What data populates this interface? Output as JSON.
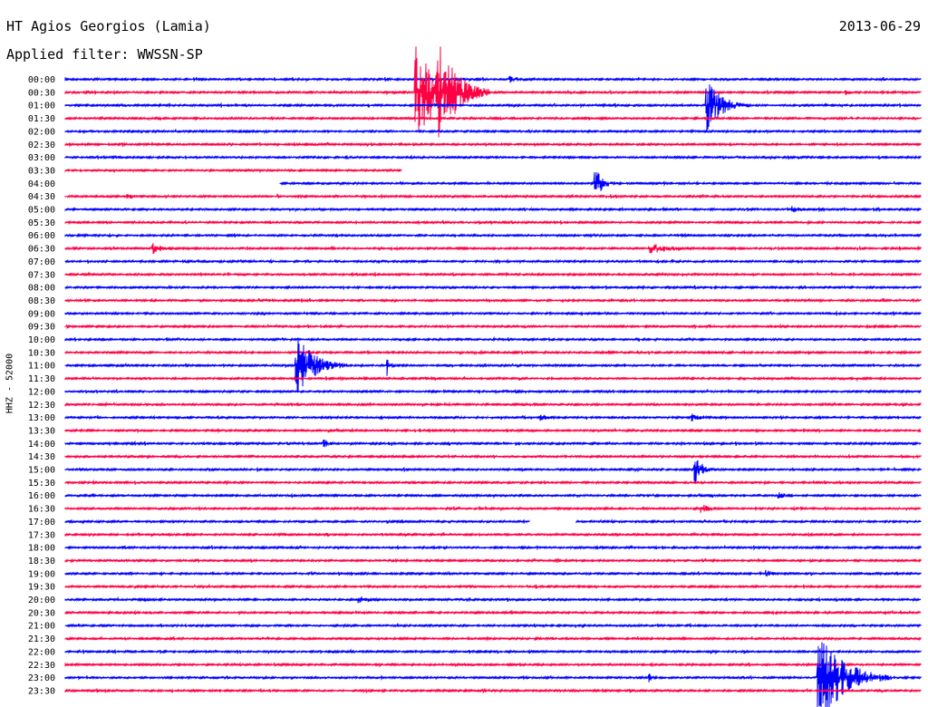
{
  "header": {
    "station": "HT Agios Georgios (Lamia)",
    "filter": "Applied filter: WWSSN-SP",
    "date": "2013-06-29"
  },
  "chart_data": {
    "type": "line",
    "title": "HT Agios Georgios (Lamia)",
    "subtitle": "Applied filter: WWSSN-SP",
    "date": "2013-06-29",
    "ylabel": "HHZ - 52000",
    "row_labels": [
      "00:00",
      "00:30",
      "01:00",
      "01:30",
      "02:00",
      "02:30",
      "03:00",
      "03:30",
      "04:00",
      "04:30",
      "05:00",
      "05:30",
      "06:00",
      "06:30",
      "07:00",
      "07:30",
      "08:00",
      "08:30",
      "09:00",
      "09:30",
      "10:00",
      "10:30",
      "11:00",
      "11:30",
      "12:00",
      "12:30",
      "13:00",
      "13:30",
      "14:00",
      "14:30",
      "15:00",
      "15:30",
      "16:00",
      "16:30",
      "17:00",
      "17:30",
      "18:00",
      "18:30",
      "19:00",
      "19:30",
      "20:00",
      "20:30",
      "21:00",
      "21:30",
      "22:00",
      "22:30",
      "23:00",
      "23:30"
    ],
    "x_minutes_per_row": 30,
    "colors": {
      "even": "#0000ff",
      "odd": "#ff0044"
    },
    "events": [
      {
        "row": 0,
        "minute": 15.6,
        "amp": 4,
        "dur": 1.2
      },
      {
        "row": 1,
        "minute": 12.3,
        "amp": 55,
        "dur": 2.5
      },
      {
        "row": 1,
        "minute": 13.1,
        "amp": 60,
        "dur": 1.8
      },
      {
        "row": 1,
        "minute": 27.4,
        "amp": 3,
        "dur": 0.8
      },
      {
        "row": 2,
        "minute": 22.5,
        "amp": 30,
        "dur": 1.5
      },
      {
        "row": 8,
        "minute": 18.6,
        "amp": 16,
        "dur": 0.9
      },
      {
        "row": 9,
        "minute": 2.2,
        "amp": 3,
        "dur": 0.8
      },
      {
        "row": 10,
        "minute": 25.5,
        "amp": 4,
        "dur": 1.2
      },
      {
        "row": 13,
        "minute": 3.1,
        "amp": 6,
        "dur": 1.1
      },
      {
        "row": 13,
        "minute": 20.5,
        "amp": 6,
        "dur": 2.5
      },
      {
        "row": 22,
        "minute": 8.1,
        "amp": 35,
        "dur": 1.8
      },
      {
        "row": 22,
        "minute": 11.3,
        "amp": 10,
        "dur": 0.3
      },
      {
        "row": 26,
        "minute": 16.7,
        "amp": 4,
        "dur": 1.0
      },
      {
        "row": 26,
        "minute": 22.0,
        "amp": 4,
        "dur": 1.2
      },
      {
        "row": 28,
        "minute": 9.1,
        "amp": 5,
        "dur": 0.6
      },
      {
        "row": 30,
        "minute": 22.1,
        "amp": 15,
        "dur": 0.8
      },
      {
        "row": 32,
        "minute": 25.0,
        "amp": 4,
        "dur": 1.2
      },
      {
        "row": 33,
        "minute": 22.3,
        "amp": 6,
        "dur": 0.8
      },
      {
        "row": 38,
        "minute": 24.6,
        "amp": 4,
        "dur": 0.9
      },
      {
        "row": 40,
        "minute": 10.3,
        "amp": 4,
        "dur": 1.6
      },
      {
        "row": 46,
        "minute": 26.4,
        "amp": 55,
        "dur": 2.5
      },
      {
        "row": 46,
        "minute": 20.5,
        "amp": 5,
        "dur": 0.3
      }
    ],
    "gaps": [
      {
        "row": 7,
        "from_minute": 11.8,
        "to_minute": 30
      },
      {
        "row": 8,
        "from_minute": 0,
        "to_minute": 7.5
      },
      {
        "row": 34,
        "from_minute": 16.3,
        "to_minute": 17.9
      }
    ]
  }
}
